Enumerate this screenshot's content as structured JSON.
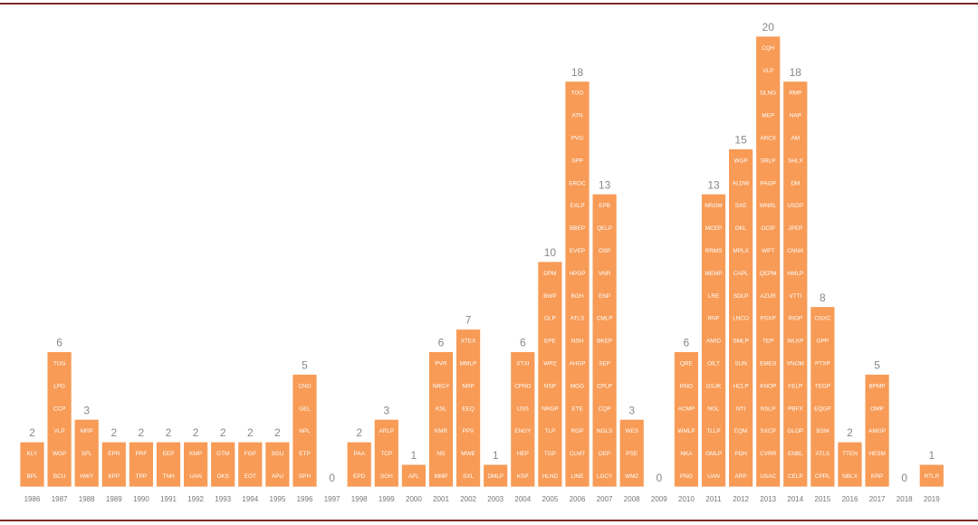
{
  "chart_data": {
    "type": "bar",
    "categories": [
      "1986",
      "1987",
      "1988",
      "1989",
      "1990",
      "1991",
      "1992",
      "1993",
      "1994",
      "1995",
      "1996",
      "1997",
      "1998",
      "1999",
      "2000",
      "2001",
      "2002",
      "2003",
      "2004",
      "2005",
      "2006",
      "2007",
      "2008",
      "2009",
      "2010",
      "2011",
      "2012",
      "2013",
      "2014",
      "2015",
      "2016",
      "2017",
      "2018",
      "2019"
    ],
    "values": [
      2,
      6,
      3,
      2,
      2,
      2,
      2,
      2,
      2,
      2,
      5,
      0,
      2,
      3,
      1,
      6,
      7,
      1,
      6,
      10,
      18,
      13,
      3,
      0,
      6,
      13,
      15,
      20,
      18,
      8,
      2,
      5,
      0,
      1
    ],
    "stacks": [
      [
        "KLY",
        "BPL"
      ],
      [
        "TUG",
        "LPG",
        "CCP",
        "VLP",
        "WGP",
        "BCU"
      ],
      [
        "MRP",
        "SFL",
        "HWY"
      ],
      [
        "EPR",
        "KPP"
      ],
      [
        "PRF",
        "TPP"
      ],
      [
        "EEP",
        "TNH"
      ],
      [
        "KMP",
        "UAN"
      ],
      [
        "GTM",
        "OKS"
      ],
      [
        "FGP",
        "EOT"
      ],
      [
        "SGU",
        "APU"
      ],
      [
        "CNO",
        "GEL",
        "NPL",
        "ETP",
        "SPH"
      ],
      [],
      [
        "PAA",
        "EPD"
      ],
      [
        "ARLP",
        "TCP",
        "SGH"
      ],
      [
        "APL"
      ],
      [
        "PVR",
        "NRGY",
        "KSL",
        "KMR",
        "NS",
        "MMP"
      ],
      [
        "XTEX",
        "MMLP",
        "NRP",
        "EEQ",
        "PPX",
        "MWE",
        "SXL"
      ],
      [
        "DMLP"
      ],
      [
        "XTXI",
        "CPNO",
        "USS",
        "ENGY",
        "HEP",
        "KSP"
      ],
      [
        "DPM",
        "BWP",
        "GLP",
        "EPE",
        "WPZ",
        "NSP",
        "NRGP",
        "TLP",
        "TGP",
        "HLND"
      ],
      [
        "TOO",
        "ATN",
        "PVG",
        "SPP",
        "EROC",
        "EXLP",
        "BBEP",
        "EVEP",
        "HPGP",
        "BGH",
        "ATLS",
        "NSH",
        "AHGP",
        "MGG",
        "ETE",
        "RGP",
        "CLMT",
        "LINE"
      ],
      [
        "EPB",
        "QELP",
        "OSP",
        "VNR",
        "ENP",
        "CMLP",
        "BKEP",
        "SEP",
        "CPLP",
        "CQP",
        "NGLS",
        "DEP",
        "LGCY"
      ],
      [
        "WES",
        "PSE",
        "WMZ"
      ],
      [],
      [
        "QRE",
        "RNO",
        "ACMP",
        "WMLP",
        "NKA",
        "PNG"
      ],
      [
        "NRGM",
        "MCEP",
        "RRMS",
        "MEMP",
        "LRE",
        "RNF",
        "AMID",
        "OILT",
        "GSJK",
        "NGL",
        "TLLP",
        "GMLP",
        "UAN"
      ],
      [
        "WGP",
        "ALDW",
        "SXE",
        "OKL",
        "MPLX",
        "CAPL",
        "SDLP",
        "LNCO",
        "SMLP",
        "SUN",
        "HCLP",
        "NTI",
        "EQM",
        "PDH",
        "ARP"
      ],
      [
        "CQH",
        "VLP",
        "DLNG",
        "MEP",
        "ARCX",
        "SRLP",
        "PAGP",
        "WNRL",
        "OCIP",
        "WPT",
        "QEPM",
        "AZUR",
        "PSXP",
        "TEP",
        "EMES",
        "KNOP",
        "NSLP",
        "SXCP",
        "CVRR",
        "USAC"
      ],
      [
        "RMP",
        "NAP",
        "AM",
        "SHLX",
        "DM",
        "USDP",
        "JPEP",
        "CNNX",
        "HMLP",
        "VTTI",
        "RIGP",
        "WLKP",
        "VNOM",
        "FELP",
        "PBFX",
        "GLOP",
        "ENBL",
        "CELP"
      ],
      [
        "CNXC",
        "GPP",
        "PTXP",
        "TEGP",
        "EQGP",
        "BSM",
        "ATLS",
        "CPPL"
      ],
      [
        "TTEN",
        "NBLX"
      ],
      [
        "BPMP",
        "OMP",
        "AMGP",
        "HESM",
        "KRP"
      ],
      [],
      [
        "RTLR"
      ]
    ],
    "colors": {
      "bar": "#f79b56",
      "bar_border": "#ffffff",
      "label": "#ffffff",
      "count": "#888888",
      "axis": "#777777",
      "rule": "#7d2a2a"
    }
  }
}
